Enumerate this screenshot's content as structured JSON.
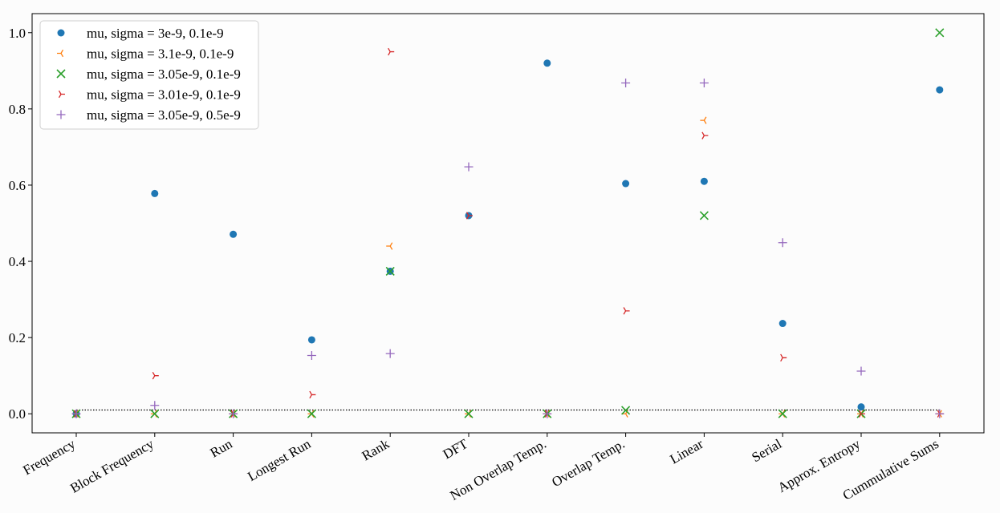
{
  "chart_data": {
    "type": "scatter",
    "title": "",
    "xlabel": "",
    "ylabel": "",
    "categories": [
      "Frequency",
      "Block Frequency",
      "Run",
      "Longest Run",
      "Rank",
      "DFT",
      "Non Overlap Temp.",
      "Overlap Temp.",
      "Linear",
      "Serial",
      "Approx. Entropy",
      "Cummulative Sums"
    ],
    "ylim": [
      -0.05,
      1.05
    ],
    "yticks": [
      "0.0",
      "0.2",
      "0.4",
      "0.6",
      "0.8",
      "1.0"
    ],
    "threshold": 0.01,
    "grid": false,
    "legend_position": "top-left",
    "series": [
      {
        "name": "mu, sigma = 3e-9, 0.1e-9",
        "marker": "circle",
        "color": "#1f77b4",
        "values": [
          0.0,
          0.578,
          0.471,
          0.194,
          0.374,
          0.52,
          0.92,
          0.604,
          0.61,
          0.237,
          0.018,
          0.85
        ]
      },
      {
        "name": "mu, sigma = 3.1e-9, 0.1e-9",
        "marker": "tri_left",
        "color": "#ff7f0e",
        "values": [
          0.0,
          0.0,
          0.0,
          0.0,
          0.44,
          0.0,
          0.0,
          0.0,
          0.77,
          0.0,
          0.0,
          0.0
        ]
      },
      {
        "name": "mu, sigma = 3.05e-9, 0.1e-9",
        "marker": "x",
        "color": "#2ca02c",
        "values": [
          0.0,
          0.0,
          0.0,
          0.0,
          0.374,
          0.0,
          0.0,
          0.009,
          0.52,
          0.0,
          0.0,
          1.0
        ]
      },
      {
        "name": "mu, sigma = 3.01e-9, 0.1e-9",
        "marker": "tri_right",
        "color": "#d62728",
        "values": [
          0.0,
          0.1,
          0.0,
          0.05,
          0.95,
          0.52,
          0.0,
          0.27,
          0.73,
          0.147,
          0.0,
          0.0
        ]
      },
      {
        "name": "mu, sigma = 3.05e-9, 0.5e-9",
        "marker": "plus",
        "color": "#9467bd",
        "values": [
          0.0,
          0.022,
          0.0,
          0.153,
          0.158,
          0.648,
          0.0,
          0.868,
          0.868,
          0.449,
          0.112,
          0.0
        ]
      }
    ]
  }
}
